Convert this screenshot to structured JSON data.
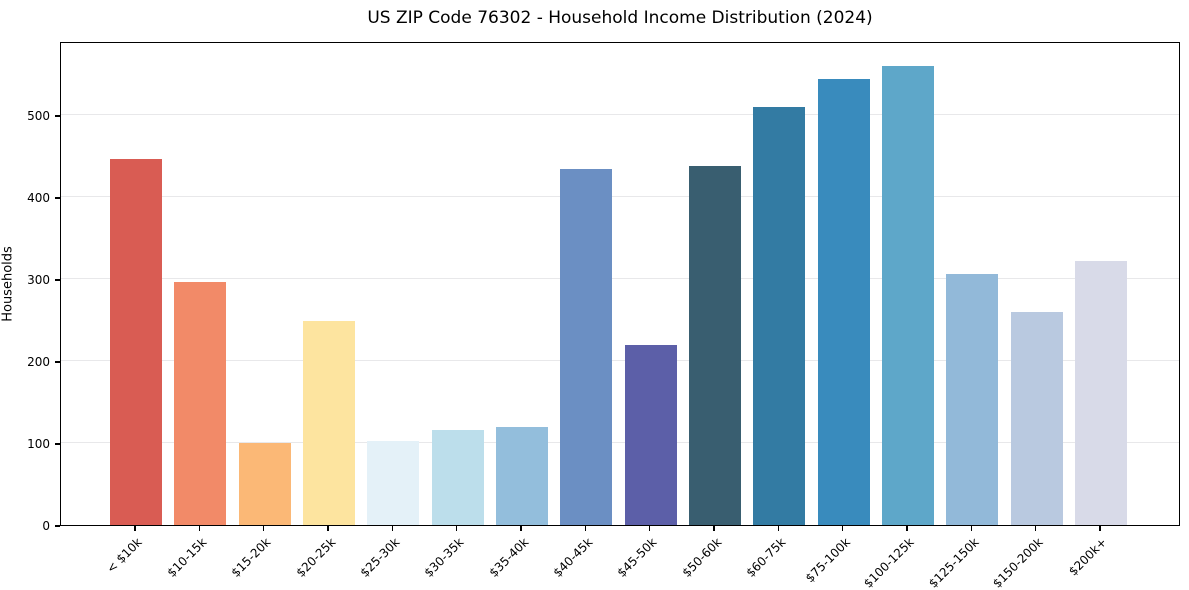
{
  "chart_data": {
    "type": "bar",
    "title": "US ZIP Code 76302 - Household Income Distribution (2024)",
    "xlabel": "",
    "ylabel": "Households",
    "categories": [
      "< $10k",
      "$10-15k",
      "$15-20k",
      "$20-25k",
      "$25-30k",
      "$30-35k",
      "$35-40k",
      "$40-45k",
      "$45-50k",
      "$50-60k",
      "$60-75k",
      "$75-100k",
      "$100-125k",
      "$125-150k",
      "$150-200k",
      "$200k+"
    ],
    "values": [
      446,
      296,
      100,
      249,
      102,
      116,
      120,
      434,
      220,
      438,
      510,
      544,
      560,
      306,
      260,
      322
    ],
    "bar_colors": [
      "#d95c53",
      "#f28a68",
      "#fbb876",
      "#fde49f",
      "#e4f1f8",
      "#bcdeeb",
      "#93bedc",
      "#6b8fc3",
      "#5c5fa8",
      "#395e70",
      "#337ba3",
      "#398bbd",
      "#5ea7c9",
      "#92b9d9",
      "#b9c9e0",
      "#d8dae8"
    ],
    "ylim": [
      0,
      590
    ],
    "yticks": [
      0,
      100,
      200,
      300,
      400,
      500
    ],
    "legend": "none",
    "grid": "horizontal-only",
    "grid_color": "#e8e8ea",
    "axes_color": "#000000",
    "background_color": "#ffffff"
  }
}
